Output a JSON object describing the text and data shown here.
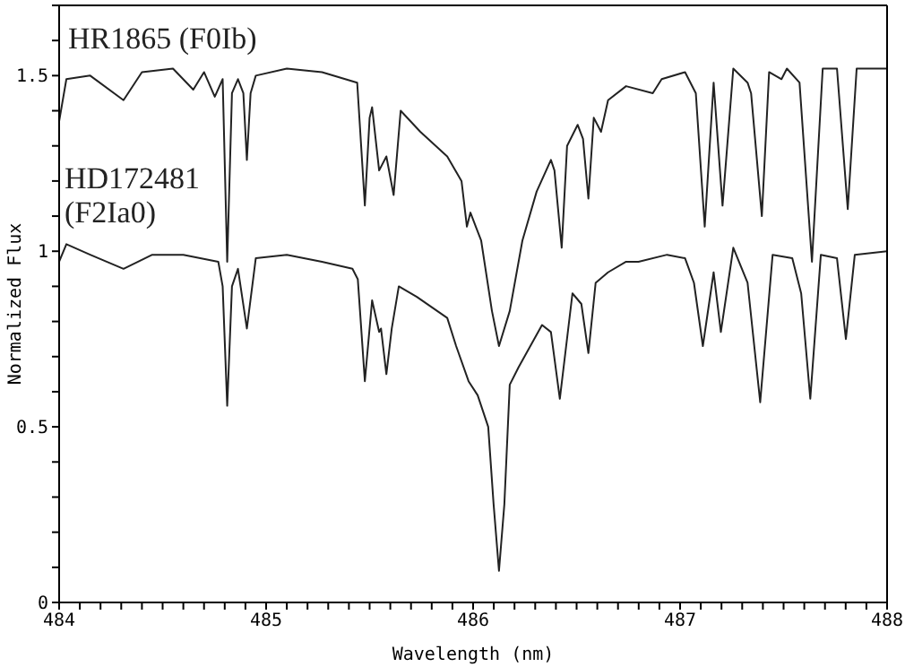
{
  "chart_data": {
    "type": "line",
    "xlabel": "Wavelength (nm)",
    "ylabel": "Normalized Flux",
    "xlim": [
      484,
      488
    ],
    "ylim": [
      0,
      1.7
    ],
    "legend": false,
    "grid": false,
    "marker": "none",
    "line_style": "solid",
    "xticks": [
      484,
      {
        "value": 484.1,
        "label": null
      },
      {
        "value": 484.2,
        "label": null
      },
      {
        "value": 484.3,
        "label": null
      },
      {
        "value": 484.4,
        "label": null
      },
      {
        "value": 484.5,
        "label": null
      },
      {
        "value": 484.6,
        "label": null
      },
      {
        "value": 484.7,
        "label": null
      },
      {
        "value": 484.8,
        "label": null
      },
      {
        "value": 484.9,
        "label": null
      },
      485,
      {
        "value": 485.1,
        "label": null
      },
      {
        "value": 485.2,
        "label": null
      },
      {
        "value": 485.3,
        "label": null
      },
      {
        "value": 485.4,
        "label": null
      },
      {
        "value": 485.5,
        "label": null
      },
      {
        "value": 485.6,
        "label": null
      },
      {
        "value": 485.7,
        "label": null
      },
      {
        "value": 485.8,
        "label": null
      },
      {
        "value": 485.9,
        "label": null
      },
      486,
      {
        "value": 486.1,
        "label": null
      },
      {
        "value": 486.2,
        "label": null
      },
      {
        "value": 486.3,
        "label": null
      },
      {
        "value": 486.4,
        "label": null
      },
      {
        "value": 486.5,
        "label": null
      },
      {
        "value": 486.6,
        "label": null
      },
      {
        "value": 486.7,
        "label": null
      },
      {
        "value": 486.8,
        "label": null
      },
      {
        "value": 486.9,
        "label": null
      },
      487,
      {
        "value": 487.1,
        "label": null
      },
      {
        "value": 487.2,
        "label": null
      },
      {
        "value": 487.3,
        "label": null
      },
      {
        "value": 487.4,
        "label": null
      },
      {
        "value": 487.5,
        "label": null
      },
      {
        "value": 487.6,
        "label": null
      },
      {
        "value": 487.7,
        "label": null
      },
      {
        "value": 487.8,
        "label": null
      },
      {
        "value": 487.9,
        "label": null
      },
      488
    ],
    "yticks": [
      0,
      {
        "value": 0.1,
        "label": null
      },
      {
        "value": 0.2,
        "label": null
      },
      {
        "value": 0.3,
        "label": null
      },
      {
        "value": 0.4,
        "label": null
      },
      0.5,
      {
        "value": 0.6,
        "label": null
      },
      {
        "value": 0.7,
        "label": null
      },
      {
        "value": 0.8,
        "label": null
      },
      {
        "value": 0.9,
        "label": null
      },
      1,
      {
        "value": 1.1,
        "label": null
      },
      {
        "value": 1.2,
        "label": null
      },
      {
        "value": 1.3,
        "label": null
      },
      {
        "value": 1.4,
        "label": null
      },
      1.5,
      {
        "value": 1.6,
        "label": null
      },
      {
        "value": 1.7,
        "label": null
      }
    ],
    "series": [
      {
        "name": "HR1865 (F0Ib)",
        "color": "#222222",
        "x": [
          484,
          484.035,
          484.15,
          484.311,
          484.4,
          484.55,
          484.648,
          484.7,
          484.752,
          484.79,
          484.812,
          484.835,
          484.864,
          484.89,
          484.907,
          484.925,
          484.95,
          485.1,
          485.27,
          485.44,
          485.477,
          485.5,
          485.512,
          485.546,
          485.581,
          485.616,
          485.65,
          485.745,
          485.875,
          485.944,
          485.97,
          485.987,
          486.039,
          486.091,
          486.125,
          486.177,
          486.238,
          486.307,
          486.376,
          486.393,
          486.428,
          486.454,
          486.505,
          486.531,
          486.557,
          486.583,
          486.618,
          486.652,
          486.739,
          486.868,
          486.911,
          487.024,
          487.076,
          487.119,
          487.162,
          487.205,
          487.257,
          487.326,
          487.343,
          487.395,
          487.43,
          487.49,
          487.516,
          487.577,
          487.637,
          487.689,
          487.758,
          487.81,
          487.853,
          488
        ],
        "values": [
          1.37,
          1.49,
          1.5,
          1.43,
          1.51,
          1.52,
          1.46,
          1.51,
          1.44,
          1.49,
          0.97,
          1.45,
          1.49,
          1.45,
          1.26,
          1.45,
          1.5,
          1.52,
          1.51,
          1.48,
          1.13,
          1.38,
          1.41,
          1.23,
          1.27,
          1.16,
          1.4,
          1.34,
          1.27,
          1.2,
          1.07,
          1.11,
          1.03,
          0.83,
          0.73,
          0.83,
          1.03,
          1.17,
          1.26,
          1.23,
          1.01,
          1.3,
          1.36,
          1.32,
          1.15,
          1.38,
          1.34,
          1.43,
          1.47,
          1.45,
          1.49,
          1.51,
          1.45,
          1.07,
          1.48,
          1.13,
          1.52,
          1.48,
          1.45,
          1.1,
          1.51,
          1.49,
          1.52,
          1.48,
          0.97,
          1.52,
          1.52,
          1.12,
          1.52,
          1.52
        ]
      },
      {
        "name": "HD172481 (F2Ia0)",
        "color": "#222222",
        "x": [
          484,
          484.035,
          484.15,
          484.311,
          484.45,
          484.6,
          484.769,
          484.79,
          484.812,
          484.835,
          484.864,
          484.907,
          484.95,
          485.1,
          485.27,
          485.417,
          485.443,
          485.477,
          485.512,
          485.546,
          485.555,
          485.581,
          485.607,
          485.641,
          485.728,
          485.875,
          485.918,
          485.978,
          486.022,
          486.073,
          486.099,
          486.125,
          486.151,
          486.177,
          486.22,
          486.333,
          486.376,
          486.419,
          486.48,
          486.523,
          486.557,
          486.592,
          486.652,
          486.739,
          486.799,
          486.937,
          487.024,
          487.067,
          487.11,
          487.162,
          487.197,
          487.257,
          487.326,
          487.387,
          487.447,
          487.542,
          487.585,
          487.629,
          487.68,
          487.758,
          487.801,
          487.844,
          488
        ],
        "values": [
          0.97,
          1.02,
          0.99,
          0.95,
          0.99,
          0.99,
          0.97,
          0.9,
          0.56,
          0.9,
          0.95,
          0.78,
          0.98,
          0.99,
          0.97,
          0.95,
          0.92,
          0.63,
          0.86,
          0.77,
          0.78,
          0.65,
          0.78,
          0.9,
          0.87,
          0.81,
          0.73,
          0.63,
          0.59,
          0.5,
          0.28,
          0.09,
          0.28,
          0.62,
          0.67,
          0.79,
          0.77,
          0.58,
          0.88,
          0.85,
          0.71,
          0.91,
          0.94,
          0.97,
          0.97,
          0.99,
          0.98,
          0.91,
          0.73,
          0.94,
          0.77,
          1.01,
          0.91,
          0.57,
          0.99,
          0.98,
          0.88,
          0.58,
          0.99,
          0.98,
          0.75,
          0.99,
          1.0
        ]
      }
    ]
  }
}
